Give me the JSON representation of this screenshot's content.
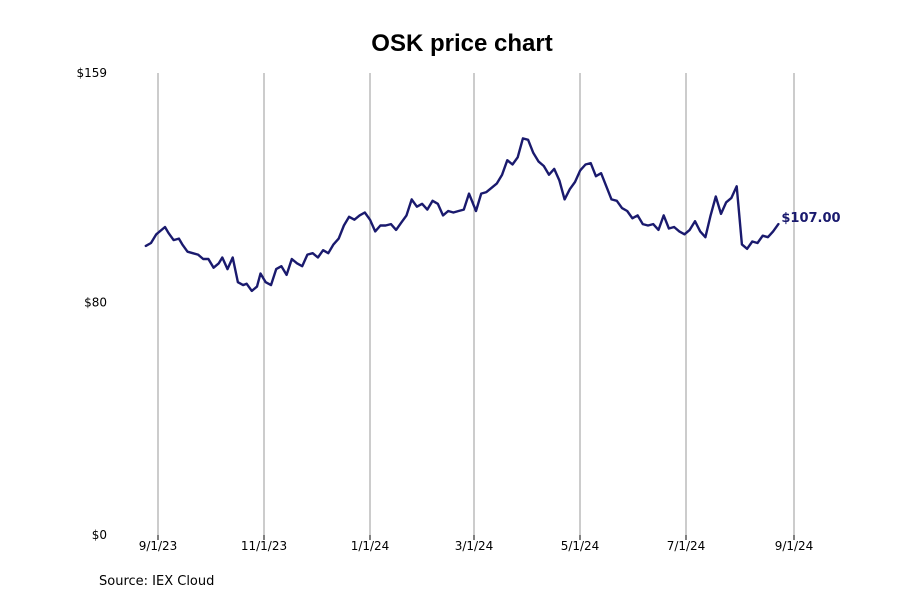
{
  "chart_data": {
    "type": "line",
    "title": "OSK price chart",
    "xlabel": "",
    "ylabel": "",
    "x_ticks": [
      "9/1/23",
      "11/1/23",
      "1/1/24",
      "3/1/24",
      "5/1/24",
      "7/1/24",
      "9/1/24"
    ],
    "y_ticks": [
      "$159",
      "$80",
      "$0"
    ],
    "ylim": [
      0,
      159
    ],
    "xlim": [
      "2023-08-25",
      "2024-09-01"
    ],
    "grid": "vertical",
    "line_color": "#1a1a6e",
    "last_value_label": "$107.00",
    "series": [
      {
        "x": [
          "2023-08-25",
          "2023-08-28",
          "2023-08-31",
          "2023-09-05",
          "2023-09-07",
          "2023-09-10",
          "2023-09-13",
          "2023-09-15",
          "2023-09-18",
          "2023-09-21",
          "2023-09-24",
          "2023-09-27",
          "2023-09-30",
          "2023-10-03",
          "2023-10-06",
          "2023-10-08",
          "2023-10-11",
          "2023-10-14",
          "2023-10-17",
          "2023-10-20",
          "2023-10-22",
          "2023-10-25",
          "2023-10-28",
          "2023-10-30",
          "2023-11-02",
          "2023-11-05",
          "2023-11-08",
          "2023-11-11",
          "2023-11-14",
          "2023-11-17",
          "2023-11-20",
          "2023-11-23",
          "2023-11-26",
          "2023-11-29",
          "2023-12-02",
          "2023-12-05",
          "2023-12-08",
          "2023-12-11",
          "2023-12-14",
          "2023-12-17",
          "2023-12-20",
          "2023-12-23",
          "2023-12-26",
          "2023-12-29",
          "2024-01-01",
          "2024-01-04",
          "2024-01-07",
          "2024-01-10",
          "2024-01-13",
          "2024-01-16",
          "2024-01-19",
          "2024-01-22",
          "2024-01-25",
          "2024-01-28",
          "2024-01-31",
          "2024-02-03",
          "2024-02-06",
          "2024-02-09",
          "2024-02-12",
          "2024-02-15",
          "2024-02-18",
          "2024-02-21",
          "2024-02-24",
          "2024-02-27",
          "2024-03-02",
          "2024-03-05",
          "2024-03-08",
          "2024-03-11",
          "2024-03-14",
          "2024-03-17",
          "2024-03-20",
          "2024-03-23",
          "2024-03-26",
          "2024-03-29",
          "2024-04-01",
          "2024-04-04",
          "2024-04-07",
          "2024-04-10",
          "2024-04-13",
          "2024-04-16",
          "2024-04-19",
          "2024-04-22",
          "2024-04-25",
          "2024-04-28",
          "2024-05-01",
          "2024-05-04",
          "2024-05-07",
          "2024-05-10",
          "2024-05-13",
          "2024-05-16",
          "2024-05-19",
          "2024-05-22",
          "2024-05-25",
          "2024-05-28",
          "2024-05-31",
          "2024-06-03",
          "2024-06-06",
          "2024-06-09",
          "2024-06-12",
          "2024-06-15",
          "2024-06-18",
          "2024-06-21",
          "2024-06-24",
          "2024-06-27",
          "2024-06-30",
          "2024-07-03",
          "2024-07-06",
          "2024-07-09",
          "2024-07-12",
          "2024-07-15",
          "2024-07-18",
          "2024-07-21",
          "2024-07-24",
          "2024-07-27",
          "2024-07-30",
          "2024-08-02",
          "2024-08-05",
          "2024-08-08",
          "2024-08-11",
          "2024-08-14",
          "2024-08-17",
          "2024-08-20",
          "2024-08-23"
        ],
        "y": [
          99.5,
          100.5,
          103.5,
          106,
          104,
          101.5,
          102,
          100,
          97.5,
          97,
          96.5,
          95,
          95,
          92,
          93.5,
          95.5,
          91.5,
          95.5,
          87,
          86,
          86.5,
          84,
          85.5,
          90,
          87,
          86,
          91.5,
          92.5,
          89.5,
          95,
          93.5,
          92.5,
          96.5,
          97,
          95.5,
          98,
          97,
          100,
          102,
          106.5,
          109.5,
          108.5,
          110,
          111,
          108.5,
          104.5,
          106.5,
          106.5,
          107,
          105,
          107.5,
          110,
          115.5,
          113,
          114,
          112,
          115,
          114,
          110,
          111.5,
          111,
          111.5,
          112,
          117.5,
          111.5,
          117.5,
          118,
          119.5,
          121,
          124,
          129,
          127.5,
          130,
          136.5,
          136,
          131.5,
          128.5,
          127,
          124,
          126,
          122,
          115.5,
          119,
          121.5,
          125.5,
          127.5,
          128,
          123.5,
          124.5,
          120,
          115.5,
          115,
          112.5,
          111.5,
          109,
          110,
          107,
          106.5,
          107,
          105,
          110,
          105.5,
          106,
          104.5,
          103.5,
          105,
          108,
          104.5,
          102.5,
          110,
          116.5,
          110.5,
          114.5,
          116,
          120,
          100,
          98.5,
          101,
          100.5,
          103,
          102.5,
          104.5,
          107
        ]
      }
    ]
  },
  "source": "Source: IEX Cloud"
}
